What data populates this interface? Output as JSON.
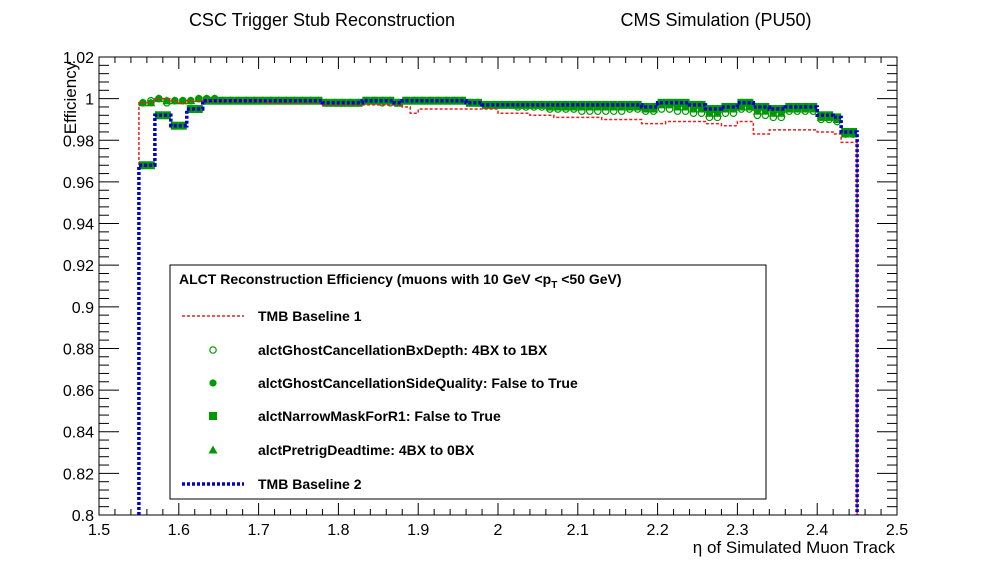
{
  "header": {
    "left_title": "CSC Trigger Stub Reconstruction",
    "right_title": "CMS Simulation (PU50)"
  },
  "chart_data": {
    "type": "scatter",
    "title": "",
    "xlabel": "η of Simulated Muon Track",
    "ylabel": "Efficiency",
    "xlim": [
      1.5,
      2.5
    ],
    "ylim": [
      0.8,
      1.02
    ],
    "x_ticks": [
      "1.5",
      "1.6",
      "1.7",
      "1.8",
      "1.9",
      "2",
      "2.1",
      "2.2",
      "2.3",
      "2.4",
      "2.5"
    ],
    "y_ticks": [
      "0.8",
      "0.82",
      "0.84",
      "0.86",
      "0.88",
      "0.9",
      "0.92",
      "0.94",
      "0.96",
      "0.98",
      "1",
      "1.02"
    ],
    "x_tick_values": [
      1.5,
      1.6,
      1.7,
      1.8,
      1.9,
      2.0,
      2.1,
      2.2,
      2.3,
      2.4,
      2.5
    ],
    "y_tick_values": [
      0.8,
      0.82,
      0.84,
      0.86,
      0.88,
      0.9,
      0.92,
      0.94,
      0.96,
      0.98,
      1.0,
      1.02
    ],
    "grid": false,
    "legend_position": "lower-left",
    "legend_title_prefix": "ALCT Reconstruction Efficiency  (muons with 10 GeV <p",
    "legend_title_sub": "T",
    "legend_title_suffix": " <50 GeV)",
    "bins": [
      1.55,
      1.56,
      1.57,
      1.58,
      1.59,
      1.6,
      1.61,
      1.62,
      1.63,
      1.64,
      1.65,
      1.66,
      1.67,
      1.68,
      1.69,
      1.7,
      1.71,
      1.72,
      1.73,
      1.74,
      1.75,
      1.76,
      1.77,
      1.78,
      1.79,
      1.8,
      1.81,
      1.82,
      1.83,
      1.84,
      1.85,
      1.86,
      1.87,
      1.88,
      1.89,
      1.9,
      1.91,
      1.92,
      1.93,
      1.94,
      1.95,
      1.96,
      1.97,
      1.98,
      1.99,
      2.0,
      2.01,
      2.02,
      2.03,
      2.04,
      2.05,
      2.06,
      2.07,
      2.08,
      2.09,
      2.1,
      2.11,
      2.12,
      2.13,
      2.14,
      2.15,
      2.16,
      2.17,
      2.18,
      2.19,
      2.2,
      2.21,
      2.22,
      2.23,
      2.24,
      2.25,
      2.26,
      2.27,
      2.28,
      2.29,
      2.3,
      2.31,
      2.32,
      2.33,
      2.34,
      2.35,
      2.36,
      2.37,
      2.38,
      2.39,
      2.4,
      2.41,
      2.42,
      2.43,
      2.44,
      2.45
    ],
    "series": [
      {
        "name": "TMB Baseline 1",
        "style": "dashed-line",
        "color": "#e8201f",
        "y": [
          0.998,
          0.998,
          1.0,
          1.0,
          0.999,
          0.998,
          0.999,
          0.999,
          0.999,
          0.999,
          0.999,
          0.999,
          0.999,
          0.999,
          0.999,
          0.999,
          0.998,
          0.998,
          0.998,
          0.998,
          0.998,
          0.998,
          0.998,
          0.997,
          0.997,
          0.997,
          0.997,
          0.997,
          0.997,
          0.997,
          0.997,
          0.997,
          0.997,
          0.996,
          0.993,
          0.995,
          0.995,
          0.995,
          0.995,
          0.995,
          0.995,
          0.995,
          0.995,
          0.995,
          0.995,
          0.993,
          0.993,
          0.993,
          0.993,
          0.992,
          0.992,
          0.992,
          0.991,
          0.991,
          0.991,
          0.991,
          0.991,
          0.991,
          0.99,
          0.99,
          0.99,
          0.99,
          0.99,
          0.988,
          0.988,
          0.988,
          0.989,
          0.989,
          0.989,
          0.989,
          0.989,
          0.988,
          0.988,
          0.987,
          0.987,
          0.989,
          0.989,
          0.983,
          0.983,
          0.985,
          0.985,
          0.985,
          0.985,
          0.985,
          0.985,
          0.984,
          0.984,
          0.983,
          0.979,
          0.979
        ]
      },
      {
        "name": "alctGhostCancellationBxDepth: 4BX to 1BX",
        "style": "open-circle",
        "color": "#009900",
        "y": [
          0.998,
          0.999,
          1.0,
          0.998,
          0.999,
          0.999,
          0.999,
          1.0,
          1.0,
          1.0,
          0.999,
          0.999,
          0.999,
          0.999,
          0.999,
          0.999,
          0.999,
          0.999,
          0.999,
          0.999,
          0.999,
          0.999,
          0.999,
          0.998,
          0.998,
          0.998,
          0.998,
          0.998,
          0.999,
          0.999,
          0.998,
          0.998,
          0.998,
          0.999,
          0.999,
          0.999,
          0.999,
          0.999,
          0.999,
          0.999,
          0.999,
          0.998,
          0.998,
          0.997,
          0.997,
          0.997,
          0.997,
          0.996,
          0.996,
          0.996,
          0.996,
          0.995,
          0.995,
          0.995,
          0.995,
          0.994,
          0.994,
          0.994,
          0.994,
          0.994,
          0.994,
          0.995,
          0.995,
          0.994,
          0.994,
          0.995,
          0.995,
          0.994,
          0.994,
          0.993,
          0.993,
          0.991,
          0.991,
          0.993,
          0.993,
          0.995,
          0.995,
          0.992,
          0.992,
          0.991,
          0.991,
          0.994,
          0.994,
          0.994,
          0.994,
          0.99,
          0.99,
          0.989,
          0.983,
          0.983
        ]
      },
      {
        "name": "alctGhostCancellationSideQuality: False to True",
        "style": "filled-circle",
        "color": "#009900",
        "y": [
          0.998,
          0.998,
          1.0,
          0.999,
          0.999,
          0.999,
          0.999,
          1.0,
          1.0,
          1.0,
          0.999,
          0.999,
          0.999,
          0.999,
          0.999,
          0.999,
          0.999,
          0.999,
          0.999,
          0.999,
          0.999,
          0.999,
          0.999,
          0.998,
          0.998,
          0.998,
          0.998,
          0.998,
          0.999,
          0.999,
          0.999,
          0.999,
          0.998,
          0.999,
          0.999,
          0.999,
          0.999,
          0.999,
          0.999,
          0.999,
          0.999,
          0.998,
          0.998,
          0.997,
          0.997,
          0.997,
          0.997,
          0.997,
          0.997,
          0.997,
          0.997,
          0.996,
          0.996,
          0.996,
          0.996,
          0.996,
          0.996,
          0.996,
          0.996,
          0.996,
          0.996,
          0.996,
          0.996,
          0.995,
          0.995,
          0.997,
          0.997,
          0.996,
          0.996,
          0.995,
          0.995,
          0.993,
          0.993,
          0.995,
          0.995,
          0.996,
          0.996,
          0.994,
          0.994,
          0.993,
          0.993,
          0.995,
          0.995,
          0.995,
          0.995,
          0.991,
          0.991,
          0.99,
          0.983,
          0.983
        ]
      },
      {
        "name": "alctNarrowMaskForR1: False to True",
        "style": "filled-square",
        "color": "#009900",
        "y": [
          0.968,
          0.968,
          0.992,
          0.992,
          0.987,
          0.987,
          0.995,
          0.995,
          0.999,
          0.999,
          0.999,
          0.999,
          0.999,
          0.999,
          0.999,
          0.999,
          0.999,
          0.999,
          0.999,
          0.999,
          0.999,
          0.999,
          0.999,
          0.998,
          0.998,
          0.998,
          0.998,
          0.998,
          0.999,
          0.999,
          0.999,
          0.999,
          0.998,
          0.999,
          0.999,
          0.999,
          0.999,
          0.999,
          0.999,
          0.999,
          0.999,
          0.998,
          0.998,
          0.997,
          0.997,
          0.997,
          0.997,
          0.997,
          0.997,
          0.997,
          0.997,
          0.997,
          0.997,
          0.997,
          0.997,
          0.997,
          0.997,
          0.997,
          0.997,
          0.997,
          0.997,
          0.997,
          0.997,
          0.996,
          0.996,
          0.998,
          0.998,
          0.998,
          0.998,
          0.997,
          0.997,
          0.995,
          0.995,
          0.996,
          0.996,
          0.998,
          0.998,
          0.996,
          0.996,
          0.995,
          0.995,
          0.996,
          0.996,
          0.996,
          0.996,
          0.992,
          0.992,
          0.991,
          0.984,
          0.984
        ]
      },
      {
        "name": "alctPretrigDeadtime: 4BX to 0BX",
        "style": "filled-triangle",
        "color": "#009900",
        "y": [
          0.998,
          0.998,
          1.0,
          0.999,
          0.999,
          0.999,
          0.999,
          1.0,
          1.0,
          1.0,
          0.999,
          0.999,
          0.999,
          0.999,
          0.999,
          0.999,
          0.999,
          0.999,
          0.999,
          0.999,
          0.999,
          0.999,
          0.999,
          0.998,
          0.998,
          0.998,
          0.998,
          0.998,
          0.999,
          0.999,
          0.999,
          0.999,
          0.998,
          0.999,
          0.999,
          0.999,
          0.999,
          0.999,
          0.999,
          0.999,
          0.999,
          0.998,
          0.998,
          0.997,
          0.997,
          0.997,
          0.997,
          0.997,
          0.997,
          0.997,
          0.997,
          0.996,
          0.996,
          0.996,
          0.996,
          0.996,
          0.996,
          0.996,
          0.996,
          0.996,
          0.996,
          0.996,
          0.996,
          0.995,
          0.995,
          0.997,
          0.997,
          0.996,
          0.996,
          0.995,
          0.995,
          0.993,
          0.993,
          0.995,
          0.995,
          0.996,
          0.996,
          0.994,
          0.994,
          0.993,
          0.993,
          0.995,
          0.995,
          0.995,
          0.995,
          0.991,
          0.991,
          0.99,
          0.983,
          0.983
        ]
      },
      {
        "name": "TMB Baseline 2",
        "style": "dotted-line",
        "color": "#0000cc",
        "y": [
          0.968,
          0.968,
          0.992,
          0.992,
          0.987,
          0.987,
          0.995,
          0.995,
          0.999,
          0.999,
          0.999,
          0.999,
          0.999,
          0.999,
          0.999,
          0.999,
          0.999,
          0.999,
          0.999,
          0.999,
          0.999,
          0.999,
          0.999,
          0.998,
          0.998,
          0.998,
          0.998,
          0.998,
          0.999,
          0.999,
          0.999,
          0.999,
          0.998,
          0.999,
          0.999,
          0.999,
          0.999,
          0.999,
          0.999,
          0.999,
          0.999,
          0.998,
          0.998,
          0.997,
          0.997,
          0.997,
          0.997,
          0.997,
          0.997,
          0.997,
          0.997,
          0.997,
          0.997,
          0.997,
          0.997,
          0.997,
          0.997,
          0.997,
          0.997,
          0.997,
          0.997,
          0.997,
          0.997,
          0.996,
          0.996,
          0.998,
          0.998,
          0.998,
          0.998,
          0.997,
          0.997,
          0.995,
          0.995,
          0.996,
          0.996,
          0.998,
          0.998,
          0.996,
          0.996,
          0.995,
          0.995,
          0.996,
          0.996,
          0.996,
          0.996,
          0.992,
          0.992,
          0.991,
          0.984,
          0.984
        ]
      }
    ]
  }
}
